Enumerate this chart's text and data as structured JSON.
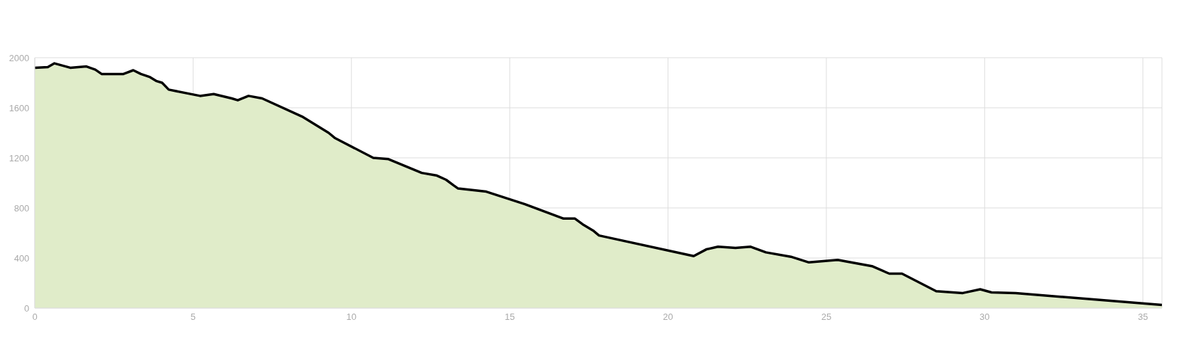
{
  "chart_data": {
    "type": "area",
    "x": [
      0,
      0.41,
      0.62,
      1.12,
      1.63,
      1.91,
      2.11,
      2.51,
      2.8,
      3.11,
      3.35,
      3.64,
      3.83,
      4.02,
      4.23,
      5.22,
      5.65,
      6.22,
      6.41,
      6.75,
      7.18,
      8.44,
      9.28,
      9.47,
      10.69,
      11.17,
      12.22,
      12.68,
      12.99,
      13.23,
      13.37,
      14.26,
      15.48,
      16.7,
      17.06,
      17.3,
      17.63,
      17.82,
      20.81,
      21.22,
      21.58,
      22.13,
      22.61,
      23.09,
      23.88,
      24.45,
      25.36,
      26.44,
      26.99,
      27.39,
      28.47,
      29.31,
      29.86,
      30.22,
      30.98,
      32.89,
      35.6
    ],
    "series": [
      {
        "color": "#e0ecc9",
        "values": [
          1920,
          1925,
          1955,
          1920,
          1930,
          1905,
          1870,
          1870,
          1870,
          1900,
          1870,
          1845,
          1815,
          1800,
          1745,
          1695,
          1710,
          1675,
          1660,
          1695,
          1675,
          1530,
          1400,
          1360,
          1200,
          1190,
          1080,
          1060,
          1025,
          980,
          955,
          930,
          830,
          715,
          715,
          670,
          620,
          580,
          415,
          470,
          490,
          480,
          490,
          445,
          410,
          365,
          385,
          335,
          275,
          275,
          135,
          120,
          150,
          125,
          120,
          80,
          25
        ]
      }
    ],
    "xlim": [
      0,
      35.6
    ],
    "xticks": [
      0,
      5,
      10,
      15,
      20,
      25,
      30,
      35
    ],
    "ylim": [
      0,
      2000
    ],
    "yticks": [
      0,
      400,
      800,
      1200,
      1600,
      2000
    ],
    "grid": true,
    "marker": "none",
    "line_style": "solid"
  }
}
